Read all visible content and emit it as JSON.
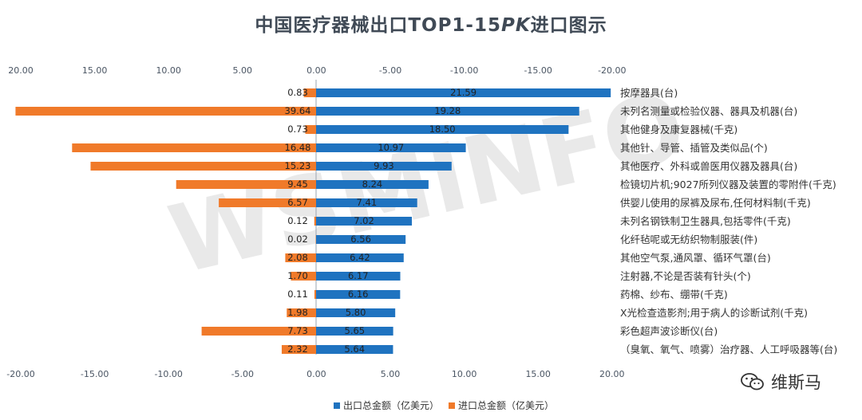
{
  "title": {
    "main": "中国医疗器械出口TOP1-15",
    "pk": "PK",
    "tail": "进口图示"
  },
  "watermark": "WSMINFO",
  "brand": {
    "name": "维斯马",
    "icon": "wechat-icon"
  },
  "colors": {
    "export": "#1f73c0",
    "import": "#f07a2a",
    "axis": "#9aa5b1",
    "text": "#333333",
    "tick": "#4a5563"
  },
  "chart_data": {
    "type": "bar",
    "orientation": "horizontal-diverging",
    "title": "中国医疗器械出口TOP1-15PK进口图示",
    "top_ticks": [
      "20.00",
      "15.00",
      "10.00",
      "5.00",
      "0.00",
      "-5.00",
      "-10.00",
      "-15.00",
      "-20.00"
    ],
    "bottom_ticks": [
      "-20.00",
      "-15.00",
      "-10.00",
      "-5.00",
      "0.00",
      "5.00",
      "10.00",
      "15.00",
      "20.00"
    ],
    "xlim": [
      -20,
      20
    ],
    "categories": [
      "按摩器具(台)",
      "未列名测量或检验仪器、器具及机器(台)",
      "其他健身及康复器械(千克)",
      "其他针、导管、插管及类似品(个)",
      "其他医疗、外科或兽医用仪器及器具(台)",
      "检镜切片机;9027所列仪器及装置的零附件(千克)",
      "供婴儿使用的尿裤及尿布,任何材料制(千克)",
      "未列名钢铁制卫生器具,包括零件(千克)",
      "化纤毡呢或无纺织物制服装(件)",
      "其他空气泵,通风罩、循环气罩(台)",
      "注射器,不论是否装有针头(个)",
      "药棉、纱布、绷带(千克)",
      "X光检查造影剂;用于病人的诊断试剂(千克)",
      "彩色超声波诊断仪(台)",
      "（臭氧、氧气、喷雾）治疗器、人工呼吸器等(台)"
    ],
    "series": [
      {
        "name": "出口总金额（亿美元）",
        "values": [
          21.59,
          19.28,
          18.5,
          10.97,
          9.93,
          8.24,
          7.41,
          7.02,
          6.56,
          6.42,
          6.17,
          6.16,
          5.8,
          5.65,
          5.64
        ],
        "labels": [
          "21.59",
          "19.28",
          "18.50",
          "10.97",
          "9.93",
          "8.24",
          "7.41",
          "7.02",
          "6.56",
          "6.42",
          "6.17",
          "6.16",
          "5.80",
          "5.65",
          "5.64"
        ]
      },
      {
        "name": "进口总金额（亿美元）",
        "values": [
          0.83,
          39.64,
          0.73,
          16.48,
          15.23,
          9.45,
          6.57,
          0.12,
          0.02,
          2.08,
          1.7,
          0.11,
          1.98,
          7.73,
          2.32
        ],
        "labels": [
          "0.83",
          "39.64",
          "0.73",
          "16.48",
          "15.23",
          "9.45",
          "6.57",
          "0.12",
          "0.02",
          "2.08",
          "1.70",
          "0.11",
          "1.98",
          "7.73",
          "2.32"
        ]
      }
    ],
    "legend_position": "bottom-center"
  }
}
